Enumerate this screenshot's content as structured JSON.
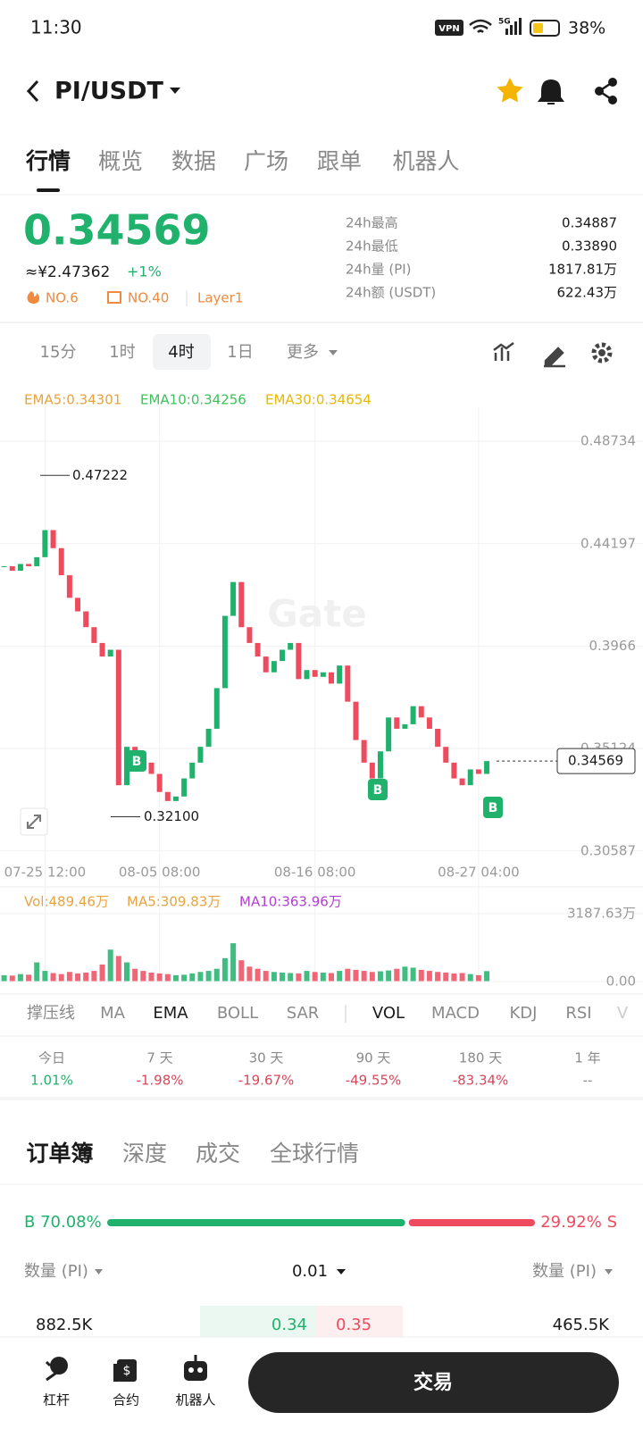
{
  "status": {
    "time": "11:30",
    "vpn": "VPN",
    "network": "5G",
    "battery": "38%"
  },
  "header": {
    "pair": "PI/USDT"
  },
  "tabs": [
    "行情",
    "概览",
    "数据",
    "广场",
    "跟单",
    "机器人"
  ],
  "ticker": {
    "price": "0.34569",
    "cny": "≈¥2.47362",
    "change": "+1%",
    "tags": [
      "NO.6",
      "NO.40",
      "Layer1"
    ]
  },
  "stats": [
    {
      "label": "24h最高",
      "value": "0.34887"
    },
    {
      "label": "24h最低",
      "value": "0.33890"
    },
    {
      "label": "24h量 (PI)",
      "value": "1817.81万"
    },
    {
      "label": "24h额 (USDT)",
      "value": "622.43万"
    }
  ],
  "intervals": [
    "15分",
    "1时",
    "4时",
    "1日",
    "更多"
  ],
  "chart": {
    "type": "candlestick",
    "legend": [
      "EMA5:0.34301",
      "EMA10:0.34256",
      "EMA30:0.34654"
    ],
    "watermark": "Gate",
    "categories": [
      null,
      null,
      null,
      null,
      null,
      "07-25 12:00",
      null,
      null,
      null,
      null,
      null,
      null,
      null,
      null,
      null,
      null,
      null,
      null,
      null,
      "08-05 08:00",
      null,
      null,
      null,
      null,
      null,
      null,
      null,
      null,
      null,
      null,
      null,
      null,
      null,
      null,
      null,
      null,
      null,
      null,
      "08-16 08:00",
      null,
      null,
      null,
      null,
      null,
      null,
      null,
      null,
      null,
      null,
      null,
      null,
      null,
      null,
      null,
      null,
      null,
      null,
      null,
      "08-27 04:00",
      null
    ],
    "closes": [
      0.432,
      0.43,
      0.433,
      0.432,
      0.436,
      0.448,
      0.44,
      0.428,
      0.418,
      0.412,
      0.405,
      0.398,
      0.392,
      0.395,
      0.335,
      0.352,
      0.348,
      0.345,
      0.34,
      0.332,
      0.328,
      0.33,
      0.338,
      0.345,
      0.352,
      0.36,
      0.378,
      0.41,
      0.425,
      0.405,
      0.398,
      0.392,
      0.385,
      0.39,
      0.395,
      0.398,
      0.382,
      0.386,
      0.383,
      0.385,
      0.38,
      0.388,
      0.372,
      0.355,
      0.345,
      0.338,
      0.35,
      0.365,
      0.36,
      0.362,
      0.37,
      0.365,
      0.36,
      0.352,
      0.345,
      0.338,
      0.335,
      0.342,
      0.34,
      0.34569
    ],
    "ylim": [
      0.305,
      0.5028
    ],
    "yticks": [
      0.48734,
      0.44197,
      0.3966,
      0.35124,
      0.30587
    ],
    "grid": true,
    "high": 0.47222,
    "low": {
      "value": 0.321,
      "label": "0.32100"
    },
    "last": 0.34569,
    "markers": [
      "B",
      "B",
      "B"
    ],
    "up_color": "#20b26c",
    "down_color": "#ef4b5e",
    "volume": {
      "legend": [
        "Vol:489.46万",
        "MA5:309.83万",
        "MA10:363.96万"
      ],
      "values": [
        300,
        280,
        350,
        320,
        900,
        500,
        400,
        350,
        450,
        380,
        420,
        500,
        800,
        1500,
        1200,
        900,
        600,
        500,
        420,
        380,
        350,
        300,
        320,
        380,
        450,
        500,
        600,
        1100,
        1800,
        1000,
        700,
        600,
        500,
        450,
        420,
        400,
        380,
        500,
        450,
        420,
        400,
        500,
        600,
        550,
        500,
        450,
        480,
        520,
        600,
        700,
        650,
        550,
        500,
        450,
        420,
        380,
        400,
        350,
        300,
        489.46
      ],
      "ylim": [
        0,
        3187.63
      ],
      "yticks": [
        {
          "value": 3187.63,
          "label": "3187.63万"
        },
        {
          "value": 0,
          "label": "0.00"
        }
      ]
    }
  },
  "indicators": {
    "main": [
      "撑压线",
      "MA",
      "EMA",
      "BOLL",
      "SAR"
    ],
    "sub": [
      "VOL",
      "MACD",
      "KDJ",
      "RSI",
      "V"
    ]
  },
  "periods": [
    {
      "label": "今日",
      "value": "1.01%"
    },
    {
      "label": "7 天",
      "value": "-1.98%"
    },
    {
      "label": "30 天",
      "value": "-19.67%"
    },
    {
      "label": "90 天",
      "value": "-49.55%"
    },
    {
      "label": "180 天",
      "value": "-83.34%"
    },
    {
      "label": "1 年",
      "value": "--"
    }
  ],
  "book_tabs": [
    "订单簿",
    "深度",
    "成交",
    "全球行情"
  ],
  "ratio": {
    "buy": 70.08,
    "buy_label": "B 70.08%",
    "sell": 29.92,
    "sell_label": "29.92% S"
  },
  "book": {
    "header": [
      "数量 (PI)",
      "0.01",
      "数量 (PI)"
    ],
    "row": [
      "882.5K",
      "0.34",
      "0.35",
      "465.5K"
    ]
  },
  "nav": [
    "杠杆",
    "合约",
    "机器人"
  ],
  "trade": "交易"
}
